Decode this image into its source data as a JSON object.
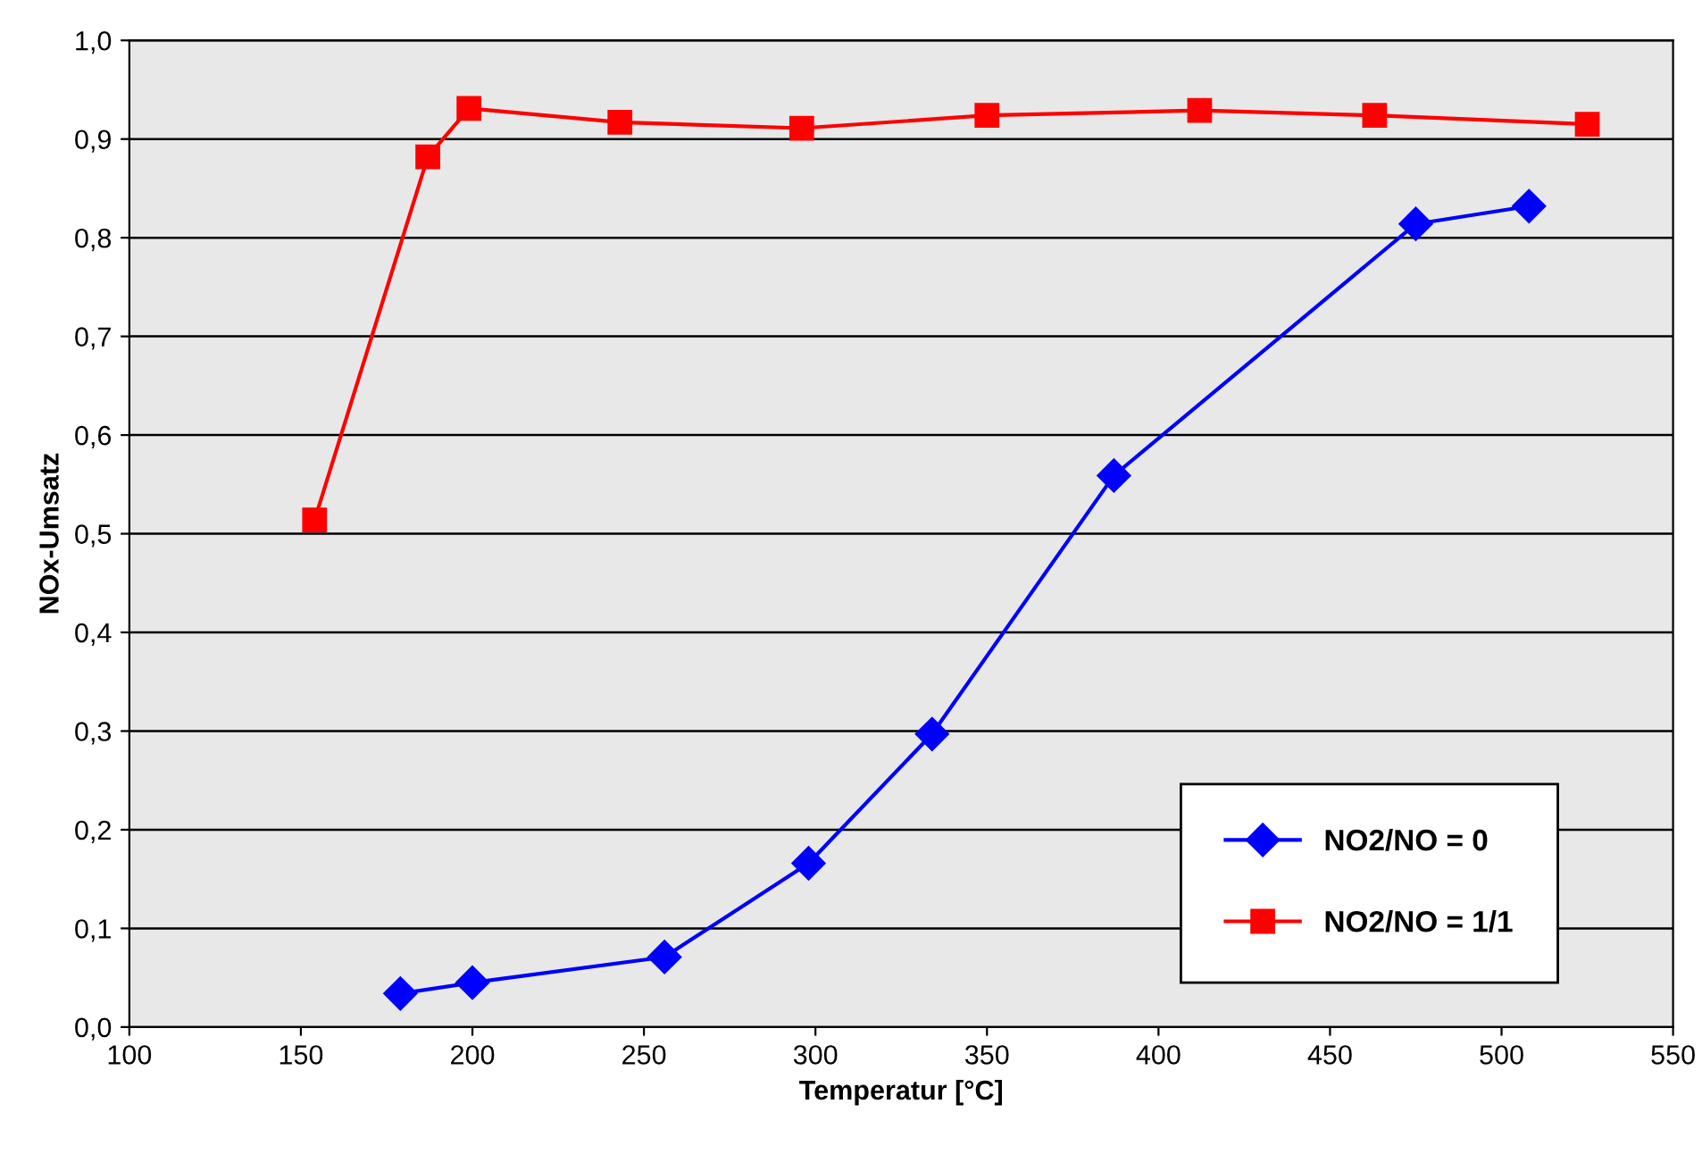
{
  "chart_data": {
    "type": "line",
    "xlabel": "Temperatur [°C]",
    "ylabel": "NOx-Umsatz",
    "xlim": [
      100,
      550
    ],
    "xticks": [
      100,
      150,
      200,
      250,
      300,
      350,
      400,
      450,
      500,
      550
    ],
    "ylim": [
      0,
      1
    ],
    "yticks": [
      {
        "value": 0,
        "label": "0,0"
      },
      {
        "value": 0.1,
        "label": "0,1"
      },
      {
        "value": 0.2,
        "label": "0,2"
      },
      {
        "value": 0.3,
        "label": "0,3"
      },
      {
        "value": 0.4,
        "label": "0,4"
      },
      {
        "value": 0.5,
        "label": "0,5"
      },
      {
        "value": 0.6,
        "label": "0,6"
      },
      {
        "value": 0.7,
        "label": "0,7"
      },
      {
        "value": 0.8,
        "label": "0,8"
      },
      {
        "value": 0.9,
        "label": "0,9"
      },
      {
        "value": 1,
        "label": "1,0"
      }
    ],
    "grid": "y",
    "legend": "bottom right",
    "line_style": "solid",
    "series": [
      {
        "name": "NO2/NO = 0",
        "color": "#0000ff",
        "marker": "diamond",
        "x": [
          179,
          200,
          256,
          298,
          334,
          387,
          475,
          508
        ],
        "values": [
          0.034,
          0.045,
          0.071,
          0.166,
          0.297,
          0.559,
          0.814,
          0.832
        ]
      },
      {
        "name": "NO2/NO = 1/1",
        "color": "#ff0000",
        "marker": "square",
        "x": [
          154,
          187,
          199,
          243,
          296,
          350,
          412,
          463,
          525
        ],
        "values": [
          0.514,
          0.882,
          0.931,
          0.917,
          0.911,
          0.924,
          0.929,
          0.924,
          0.915
        ]
      }
    ]
  }
}
